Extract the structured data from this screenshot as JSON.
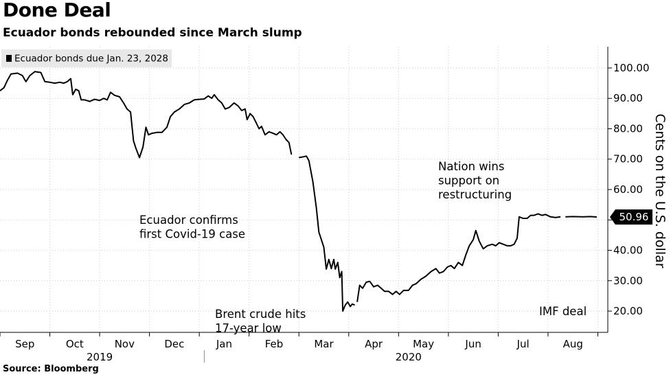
{
  "header": {
    "title": "Done Deal",
    "subtitle": "Ecuador bonds rebounded since March slump"
  },
  "footer": {
    "source": "Source: Bloomberg"
  },
  "chart_data": {
    "type": "line",
    "legend": {
      "label": "Ecuador bonds due Jan. 23, 2028",
      "placement": "top-left"
    },
    "ylabel": "Cents on the U.S. dollar",
    "ylim": [
      13,
      107
    ],
    "yticks": [
      "20.00",
      "30.00",
      "40.00",
      "50.00",
      "60.00",
      "70.00",
      "80.00",
      "90.00",
      "100.00"
    ],
    "ytick_values": [
      20,
      30,
      40,
      50,
      60,
      70,
      80,
      90,
      100
    ],
    "xlim": [
      0,
      12.2
    ],
    "months": [
      {
        "label": "Sep",
        "center": 0.5
      },
      {
        "label": "Oct",
        "center": 1.5
      },
      {
        "label": "Nov",
        "center": 2.5
      },
      {
        "label": "Dec",
        "center": 3.5
      },
      {
        "label": "Jan",
        "center": 4.5
      },
      {
        "label": "Feb",
        "center": 5.5
      },
      {
        "label": "Mar",
        "center": 6.5
      },
      {
        "label": "Apr",
        "center": 7.5
      },
      {
        "label": "May",
        "center": 8.5
      },
      {
        "label": "Jun",
        "center": 9.5
      },
      {
        "label": "Jul",
        "center": 10.5
      },
      {
        "label": "Aug",
        "center": 11.5
      }
    ],
    "years": [
      {
        "label": "2019",
        "center": 2.0
      },
      {
        "label": "2020",
        "center": 8.2
      }
    ],
    "year_divider": 4.1,
    "last_value": "50.96",
    "last_value_num": 50.96,
    "series": [
      {
        "segments": [
          [
            [
              0.0,
              92.5
            ],
            [
              0.08,
              93.5
            ],
            [
              0.15,
              96
            ],
            [
              0.22,
              98
            ],
            [
              0.35,
              98.3
            ],
            [
              0.45,
              97.5
            ],
            [
              0.52,
              95.5
            ],
            [
              0.6,
              97.5
            ],
            [
              0.7,
              98.8
            ],
            [
              0.82,
              98.5
            ],
            [
              0.9,
              95.5
            ],
            [
              1.0,
              95.3
            ],
            [
              1.1,
              95
            ],
            [
              1.2,
              95.3
            ],
            [
              1.28,
              95
            ],
            [
              1.35,
              95.5
            ],
            [
              1.42,
              96.5
            ],
            [
              1.46,
              91.2
            ],
            [
              1.52,
              93
            ],
            [
              1.58,
              92.5
            ],
            [
              1.63,
              89.5
            ],
            [
              1.7,
              89.5
            ],
            [
              1.8,
              89
            ],
            [
              1.9,
              89.7
            ],
            [
              2.0,
              89.3
            ],
            [
              2.08,
              90
            ],
            [
              2.15,
              89.5
            ],
            [
              2.22,
              92
            ],
            [
              2.3,
              91
            ],
            [
              2.4,
              90.5
            ],
            [
              2.48,
              88.5
            ],
            [
              2.55,
              86.5
            ],
            [
              2.62,
              85.5
            ],
            [
              2.68,
              76
            ],
            [
              2.73,
              73.5
            ],
            [
              2.8,
              70.5
            ],
            [
              2.87,
              74
            ],
            [
              2.93,
              80.5
            ],
            [
              2.98,
              78
            ],
            [
              3.05,
              78.5
            ],
            [
              3.15,
              78.8
            ],
            [
              3.25,
              78.8
            ],
            [
              3.35,
              80.5
            ],
            [
              3.42,
              84
            ],
            [
              3.5,
              85.5
            ],
            [
              3.6,
              86.5
            ],
            [
              3.7,
              88
            ],
            [
              3.8,
              88.5
            ],
            [
              3.9,
              89.5
            ],
            [
              4.0,
              89.7
            ],
            [
              4.1,
              89.8
            ],
            [
              4.18,
              90.8
            ],
            [
              4.25,
              90
            ],
            [
              4.3,
              91.2
            ],
            [
              4.38,
              89.5
            ],
            [
              4.45,
              88.5
            ],
            [
              4.52,
              86.5
            ],
            [
              4.6,
              87
            ],
            [
              4.7,
              88.5
            ],
            [
              4.78,
              87.5
            ],
            [
              4.85,
              86
            ],
            [
              4.92,
              86.5
            ],
            [
              4.96,
              83
            ],
            [
              5.02,
              85
            ],
            [
              5.08,
              84
            ],
            [
              5.14,
              82
            ],
            [
              5.2,
              80
            ],
            [
              5.25,
              80.8
            ],
            [
              5.32,
              78
            ],
            [
              5.4,
              79
            ],
            [
              5.48,
              78.5
            ],
            [
              5.55,
              78
            ],
            [
              5.62,
              79
            ],
            [
              5.68,
              78
            ],
            [
              5.74,
              76.5
            ],
            [
              5.8,
              75.5
            ],
            [
              5.85,
              71.5
            ]
          ],
          [
            [
              6.0,
              70.5
            ],
            [
              6.1,
              70.8
            ],
            [
              6.15,
              71
            ],
            [
              6.2,
              69.5
            ],
            [
              6.28,
              62.5
            ],
            [
              6.35,
              54
            ],
            [
              6.4,
              46
            ],
            [
              6.45,
              43.5
            ],
            [
              6.5,
              41
            ],
            [
              6.55,
              33.8
            ],
            [
              6.6,
              37
            ],
            [
              6.65,
              34
            ],
            [
              6.7,
              37
            ],
            [
              6.73,
              33.8
            ],
            [
              6.78,
              36
            ],
            [
              6.82,
              31
            ],
            [
              6.86,
              33
            ],
            [
              6.88,
              20
            ],
            [
              6.93,
              22
            ],
            [
              6.98,
              23
            ],
            [
              7.03,
              21.5
            ],
            [
              7.07,
              22.3
            ],
            [
              7.12,
              22
            ]
          ],
          [
            [
              7.17,
              23
            ],
            [
              7.22,
              28.5
            ],
            [
              7.28,
              27.5
            ],
            [
              7.35,
              29.5
            ],
            [
              7.42,
              29.8
            ],
            [
              7.5,
              28
            ],
            [
              7.58,
              28.5
            ],
            [
              7.65,
              27.5
            ],
            [
              7.72,
              26.5
            ],
            [
              7.8,
              26.5
            ],
            [
              7.88,
              25.5
            ],
            [
              7.95,
              26.5
            ],
            [
              8.02,
              25.5
            ],
            [
              8.1,
              26.8
            ],
            [
              8.2,
              26.8
            ],
            [
              8.28,
              28.5
            ],
            [
              8.35,
              29
            ],
            [
              8.45,
              30.5
            ],
            [
              8.55,
              31.5
            ],
            [
              8.65,
              33
            ],
            [
              8.75,
              34
            ],
            [
              8.82,
              32.5
            ],
            [
              8.9,
              33
            ],
            [
              8.98,
              34.5
            ],
            [
              9.05,
              35
            ],
            [
              9.12,
              34
            ],
            [
              9.2,
              36
            ],
            [
              9.28,
              35
            ],
            [
              9.35,
              38.5
            ],
            [
              9.42,
              41.5
            ],
            [
              9.5,
              43.5
            ],
            [
              9.55,
              46.5
            ],
            [
              9.62,
              43
            ],
            [
              9.7,
              40.5
            ],
            [
              9.78,
              41.5
            ],
            [
              9.88,
              42
            ],
            [
              9.95,
              41.5
            ],
            [
              10.02,
              42.5
            ],
            [
              10.1,
              42
            ],
            [
              10.18,
              41.5
            ],
            [
              10.25,
              41.5
            ],
            [
              10.32,
              42
            ],
            [
              10.38,
              44
            ],
            [
              10.42,
              51
            ],
            [
              10.5,
              50.5
            ],
            [
              10.58,
              50.5
            ],
            [
              10.65,
              51.5
            ],
            [
              10.72,
              51.5
            ],
            [
              10.8,
              52
            ],
            [
              10.88,
              51.5
            ],
            [
              10.95,
              51.8
            ],
            [
              11.05,
              51
            ],
            [
              11.15,
              50.8
            ],
            [
              11.25,
              51
            ]
          ],
          [
            [
              11.35,
              51
            ],
            [
              11.5,
              51.1
            ],
            [
              11.7,
              51
            ],
            [
              11.85,
              51.1
            ],
            [
              11.98,
              50.96
            ]
          ]
        ]
      }
    ],
    "annotations": [
      {
        "text": [
          "Nation wins",
          "support on",
          "restructuring"
        ]
      },
      {
        "text": [
          "Ecuador confirms",
          "first Covid-19 case"
        ]
      },
      {
        "text": [
          "Brent crude hits",
          "17-year low"
        ]
      },
      {
        "text": [
          "IMF deal"
        ]
      }
    ]
  },
  "colors": {
    "line": "#000000",
    "grid": "#cccccc",
    "legend_bg": "#e8e8e8",
    "axis": "#000000"
  }
}
